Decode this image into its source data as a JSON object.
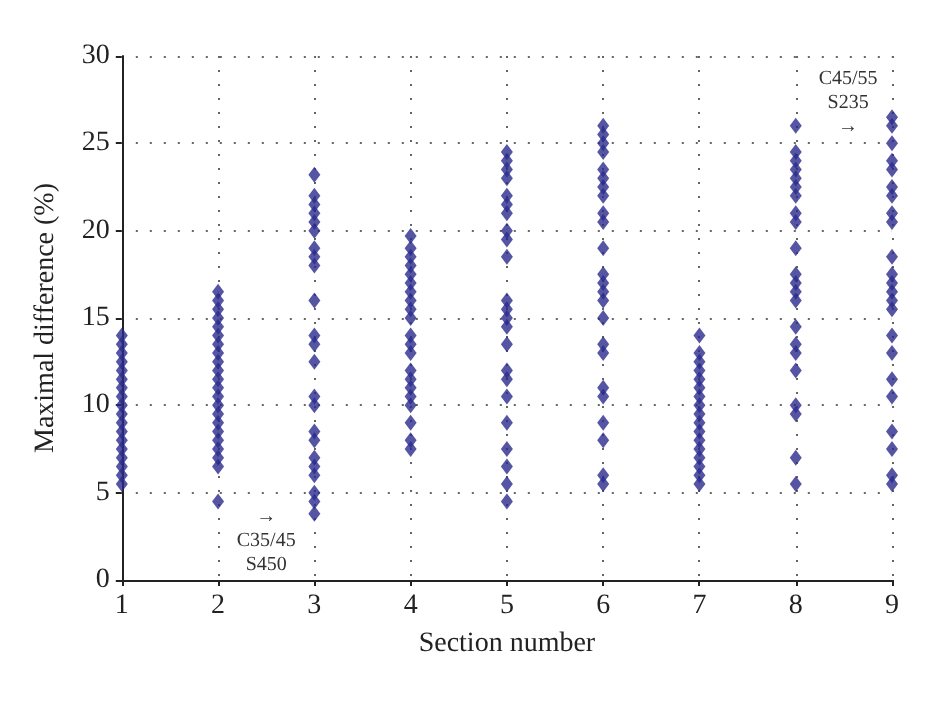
{
  "chart_data": {
    "type": "scatter",
    "xlabel": "Section number",
    "ylabel": "Maximal difference (%)",
    "xlim": [
      1,
      9
    ],
    "xticks": [
      1,
      2,
      3,
      4,
      5,
      6,
      7,
      8,
      9
    ],
    "ylim": [
      0,
      30
    ],
    "yticks": [
      0,
      5,
      10,
      15,
      20,
      25,
      30
    ],
    "grid": true,
    "marker": "diamond",
    "series": [
      {
        "color": "#2b2a8c",
        "x": [
          1,
          1,
          1,
          1,
          1,
          1,
          1,
          1,
          1,
          1,
          1,
          1,
          1,
          1,
          1,
          1,
          1,
          1,
          2,
          2,
          2,
          2,
          2,
          2,
          2,
          2,
          2,
          2,
          2,
          2,
          2,
          2,
          2,
          2,
          2,
          2,
          2,
          2,
          2,
          2,
          3,
          3,
          3,
          3,
          3,
          3,
          3,
          3,
          3,
          3,
          3,
          3,
          3,
          3,
          3,
          3,
          3,
          3,
          3,
          3,
          3,
          3,
          3,
          4,
          4,
          4,
          4,
          4,
          4,
          4,
          4,
          4,
          4,
          4,
          4,
          4,
          4,
          4,
          4,
          4,
          4,
          4,
          4,
          4,
          5,
          5,
          5,
          5,
          5,
          5,
          5,
          5,
          5,
          5,
          5,
          5,
          5,
          5,
          5,
          5,
          5,
          5,
          5,
          5,
          5,
          5,
          5,
          6,
          6,
          6,
          6,
          6,
          6,
          6,
          6,
          6,
          6,
          6,
          6,
          6,
          6,
          6,
          6,
          6,
          6,
          6,
          6,
          6,
          6,
          6,
          6,
          7,
          7,
          7,
          7,
          7,
          7,
          7,
          7,
          7,
          7,
          7,
          7,
          7,
          7,
          7,
          7,
          7,
          8,
          8,
          8,
          8,
          8,
          8,
          8,
          8,
          8,
          8,
          8,
          8,
          8,
          8,
          8,
          8,
          8,
          8,
          8,
          8,
          8,
          8,
          9,
          9,
          9,
          9,
          9,
          9,
          9,
          9,
          9,
          9,
          9,
          9,
          9,
          9,
          9,
          9,
          9,
          9,
          9,
          9,
          9,
          9,
          9
        ],
        "values": [
          5.5,
          6,
          6.5,
          7,
          7.5,
          8,
          8.5,
          9,
          9.5,
          10,
          10.5,
          11,
          11.5,
          12,
          12.5,
          13,
          13.5,
          14,
          4.5,
          6.5,
          7,
          7.5,
          8,
          8.5,
          9,
          9.5,
          10,
          10.5,
          11,
          11.5,
          12,
          12.5,
          13,
          13.5,
          14,
          14.5,
          15,
          15.5,
          16,
          16.5,
          3.8,
          4.5,
          5,
          6,
          6.5,
          7,
          8,
          8.5,
          10,
          10.5,
          12.5,
          13.5,
          14,
          16,
          18,
          18.5,
          19,
          20,
          20.5,
          21,
          21.5,
          22,
          23.2,
          7.5,
          8,
          9,
          10,
          10.5,
          11,
          11.5,
          12,
          13,
          13.5,
          14,
          15,
          15.5,
          16,
          16.5,
          17,
          17.5,
          18,
          18.5,
          19,
          19.7,
          4.5,
          5.5,
          6.5,
          7.5,
          9,
          10.5,
          11.5,
          12,
          13.5,
          14.5,
          15,
          15.5,
          16,
          18.5,
          19.5,
          20,
          21,
          21.5,
          22,
          23,
          23.5,
          24,
          24.5,
          5.5,
          6,
          8,
          9,
          10.5,
          11,
          13,
          13.5,
          15,
          16,
          16.5,
          17,
          17.5,
          19,
          20.5,
          21,
          22,
          22.5,
          23,
          23.5,
          24.5,
          25,
          25.5,
          26,
          5.5,
          6,
          6.5,
          7,
          7.5,
          8,
          8.5,
          9,
          9.5,
          10,
          10.5,
          11,
          11.5,
          12,
          12.5,
          13,
          14,
          5.5,
          7,
          9.5,
          10,
          12,
          13,
          13.5,
          14.5,
          16,
          16.5,
          17,
          17.5,
          19,
          20.5,
          21,
          22,
          22.5,
          23,
          23.5,
          24,
          24.5,
          26,
          5.5,
          6,
          7.5,
          8.5,
          10.5,
          11.5,
          13,
          14,
          15.5,
          16,
          16.5,
          17,
          17.5,
          18.5,
          20.5,
          21,
          22,
          22.5,
          23.5,
          24,
          25,
          26,
          26.5
        ]
      }
    ],
    "annotations": [
      "→\nC35/45\nS450",
      "C45/55\nS235\n→"
    ]
  }
}
